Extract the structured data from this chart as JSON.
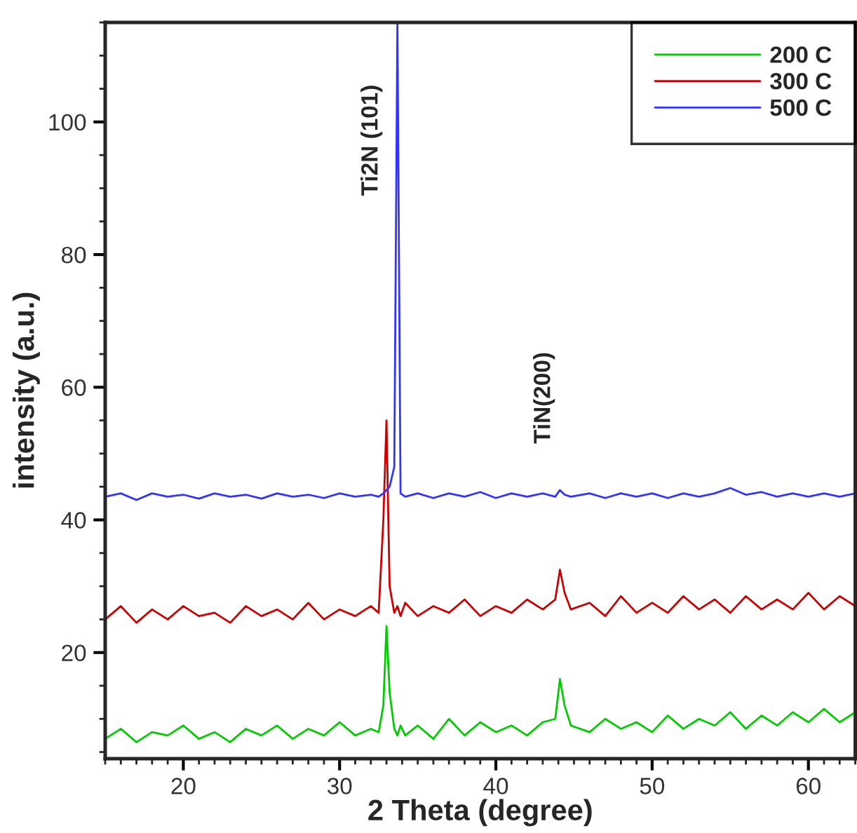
{
  "chart_data": {
    "type": "line",
    "xlabel": "2 Theta (degree)",
    "ylabel": "intensity (a.u.)",
    "x": [
      15,
      16,
      17,
      18,
      19,
      20,
      21,
      22,
      23,
      24,
      25,
      26,
      27,
      28,
      29,
      30,
      31,
      32,
      32.5,
      32.8,
      33.0,
      33.2,
      33.5,
      33.7,
      33.9,
      34.2,
      35,
      36,
      37,
      38,
      39,
      40,
      41,
      42,
      43,
      43.8,
      44.1,
      44.4,
      44.8,
      46,
      47,
      48,
      49,
      50,
      51,
      52,
      53,
      54,
      55,
      56,
      57,
      58,
      59,
      60,
      61,
      62,
      63
    ],
    "series": [
      {
        "name": "200 C",
        "color": "#00cc00",
        "values": [
          7,
          8.5,
          6.5,
          8,
          7.5,
          9,
          7,
          8,
          6.5,
          8.5,
          7.5,
          9,
          7,
          8.5,
          7.5,
          9.5,
          7.5,
          8.5,
          8,
          12,
          24,
          14,
          8.5,
          7.5,
          9,
          7.5,
          9,
          7,
          10,
          7.5,
          9.5,
          8,
          9,
          7.5,
          9.5,
          10,
          16,
          12,
          9,
          8,
          10,
          8.5,
          9.5,
          8,
          10.5,
          8.5,
          10,
          9,
          11,
          8.5,
          10.5,
          9,
          11,
          9.5,
          11.5,
          9.5,
          11
        ]
      },
      {
        "name": "300 C",
        "color": "#cc0000",
        "values": [
          25,
          27,
          24.5,
          26.5,
          25,
          27,
          25.5,
          26,
          24.5,
          27,
          25.5,
          26.5,
          25,
          27.5,
          25,
          26.5,
          25.5,
          27,
          26,
          40,
          55,
          30,
          26,
          27,
          25.5,
          27.5,
          25.5,
          27,
          26,
          28,
          25.5,
          27,
          26,
          28,
          26.5,
          28,
          32.5,
          29,
          26.5,
          27.5,
          25.5,
          28.5,
          26,
          27.5,
          26,
          28.5,
          26.5,
          28,
          26,
          28.5,
          26.5,
          28,
          26.5,
          29,
          26.5,
          28.5,
          27
        ]
      },
      {
        "name": "500 C",
        "color": "#3333ff",
        "values": [
          43.5,
          44,
          43,
          44,
          43.5,
          43.8,
          43.2,
          44,
          43.5,
          43.8,
          43.2,
          44,
          43.5,
          43.8,
          43.3,
          44,
          43.5,
          43.8,
          43.5,
          44,
          44.5,
          45,
          48,
          115,
          44,
          43.5,
          44,
          43.3,
          44,
          43.5,
          44.2,
          43.3,
          44,
          43.5,
          44,
          43.5,
          44.5,
          43.8,
          43.5,
          44,
          43.3,
          44,
          43.5,
          44,
          43.3,
          44,
          43.5,
          44,
          44.8,
          43.8,
          44.2,
          43.5,
          44,
          43.5,
          44,
          43.5,
          44
        ]
      }
    ],
    "annotations": [
      "Ti2N (101)",
      "TiN(200)"
    ],
    "xlim": [
      15,
      63
    ],
    "ylim": [
      4,
      115
    ],
    "xticks": [
      20,
      30,
      40,
      50,
      60
    ],
    "yticks": [
      20,
      40,
      60,
      80,
      100
    ],
    "grid": false,
    "legend": "top right",
    "marker": "none",
    "line_style": "solid"
  }
}
